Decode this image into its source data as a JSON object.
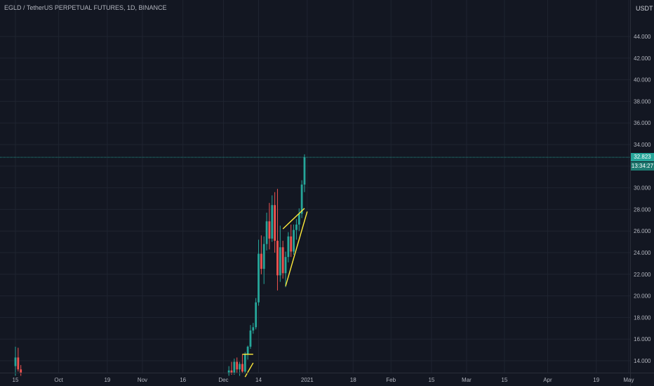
{
  "header": {
    "title": "EGLD / TetherUS PERPETUAL FUTURES, 1D, BINANCE",
    "quote_badge": "USDT"
  },
  "colors": {
    "background": "#131722",
    "grid": "#1f2430",
    "up": "#26a69a",
    "down": "#ef5350",
    "pattern_lines": "#ffeb3b",
    "price_line": "#26a69a",
    "axis_text": "#b2b5be"
  },
  "price_axis": {
    "last_price": "32.823",
    "countdown": "13:34:27"
  },
  "chart_data": {
    "type": "candlestick",
    "title": "EGLD / TetherUS PERPETUAL FUTURES, 1D, BINANCE",
    "ylim": [
      12.5,
      46
    ],
    "y_ticks": [
      "14.000",
      "16.000",
      "18.000",
      "20.000",
      "22.000",
      "24.000",
      "26.000",
      "28.000",
      "30.000",
      "32.000",
      "34.000",
      "36.000",
      "38.000",
      "40.000",
      "42.000",
      "44.000"
    ],
    "x_ticks": [
      "15",
      "Oct",
      "19",
      "Nov",
      "16",
      "Dec",
      "14",
      "2021",
      "18",
      "Feb",
      "15",
      "Mar",
      "15",
      "Apr",
      "19",
      "May"
    ],
    "x_tick_days": [
      0,
      16,
      34,
      47,
      62,
      77,
      90,
      108,
      125,
      139,
      154,
      167,
      181,
      197,
      215,
      227
    ],
    "last_price": 32.823,
    "grid": true,
    "candles": [
      {
        "d": 0,
        "o": 13.5,
        "h": 15.3,
        "l": 12.6,
        "c": 14.3
      },
      {
        "d": 1,
        "o": 14.3,
        "h": 15.2,
        "l": 13.0,
        "c": 13.2
      },
      {
        "d": 2,
        "o": 13.2,
        "h": 13.6,
        "l": 12.6,
        "c": 12.9
      },
      {
        "d": 79,
        "o": 12.8,
        "h": 13.5,
        "l": 12.6,
        "c": 13.1
      },
      {
        "d": 80,
        "o": 13.1,
        "h": 13.9,
        "l": 12.7,
        "c": 12.9
      },
      {
        "d": 81,
        "o": 12.9,
        "h": 14.2,
        "l": 12.7,
        "c": 13.9
      },
      {
        "d": 82,
        "o": 13.9,
        "h": 14.3,
        "l": 12.9,
        "c": 13.2
      },
      {
        "d": 83,
        "o": 13.2,
        "h": 13.9,
        "l": 12.6,
        "c": 13.7
      },
      {
        "d": 84,
        "o": 13.7,
        "h": 14.6,
        "l": 12.9,
        "c": 13.0
      },
      {
        "d": 85,
        "o": 13.0,
        "h": 14.8,
        "l": 12.8,
        "c": 14.6
      },
      {
        "d": 86,
        "o": 14.6,
        "h": 15.4,
        "l": 14.1,
        "c": 15.3
      },
      {
        "d": 87,
        "o": 15.3,
        "h": 17.3,
        "l": 15.1,
        "c": 16.8
      },
      {
        "d": 88,
        "o": 16.8,
        "h": 17.5,
        "l": 16.5,
        "c": 17.1
      },
      {
        "d": 89,
        "o": 17.1,
        "h": 19.8,
        "l": 16.9,
        "c": 19.4
      },
      {
        "d": 90,
        "o": 19.4,
        "h": 25.2,
        "l": 19.1,
        "c": 23.9
      },
      {
        "d": 91,
        "o": 23.9,
        "h": 25.6,
        "l": 22.0,
        "c": 22.5
      },
      {
        "d": 92,
        "o": 22.5,
        "h": 25.5,
        "l": 21.1,
        "c": 24.8
      },
      {
        "d": 93,
        "o": 24.8,
        "h": 27.7,
        "l": 24.2,
        "c": 26.9
      },
      {
        "d": 94,
        "o": 26.9,
        "h": 28.6,
        "l": 24.3,
        "c": 25.3
      },
      {
        "d": 95,
        "o": 25.3,
        "h": 29.3,
        "l": 25.0,
        "c": 28.4
      },
      {
        "d": 96,
        "o": 28.4,
        "h": 29.6,
        "l": 24.0,
        "c": 25.1
      },
      {
        "d": 97,
        "o": 25.1,
        "h": 29.9,
        "l": 20.5,
        "c": 21.9
      },
      {
        "d": 98,
        "o": 21.9,
        "h": 26.5,
        "l": 21.3,
        "c": 24.5
      },
      {
        "d": 99,
        "o": 24.5,
        "h": 25.1,
        "l": 21.6,
        "c": 22.1
      },
      {
        "d": 100,
        "o": 22.1,
        "h": 24.1,
        "l": 20.8,
        "c": 23.6
      },
      {
        "d": 101,
        "o": 23.6,
        "h": 25.9,
        "l": 23.1,
        "c": 25.5
      },
      {
        "d": 102,
        "o": 25.5,
        "h": 26.6,
        "l": 23.6,
        "c": 24.1
      },
      {
        "d": 103,
        "o": 24.1,
        "h": 26.6,
        "l": 23.8,
        "c": 26.1
      },
      {
        "d": 104,
        "o": 26.1,
        "h": 27.1,
        "l": 25.2,
        "c": 26.6
      },
      {
        "d": 105,
        "o": 26.6,
        "h": 28.1,
        "l": 26.0,
        "c": 27.6
      },
      {
        "d": 106,
        "o": 27.6,
        "h": 30.7,
        "l": 27.2,
        "c": 30.3
      },
      {
        "d": 107,
        "o": 30.3,
        "h": 33.1,
        "l": 29.6,
        "c": 32.823
      }
    ],
    "annotations": [
      {
        "type": "trendline",
        "from": [
          84,
          14.6
        ],
        "to": [
          88,
          14.6
        ]
      },
      {
        "type": "trendline",
        "from": [
          85,
          12.5
        ],
        "to": [
          88,
          13.8
        ]
      },
      {
        "type": "trendline",
        "from": [
          99,
          26.2
        ],
        "to": [
          107,
          28.1
        ]
      },
      {
        "type": "trendline",
        "from": [
          100,
          20.9
        ],
        "to": [
          108,
          27.8
        ]
      }
    ]
  }
}
